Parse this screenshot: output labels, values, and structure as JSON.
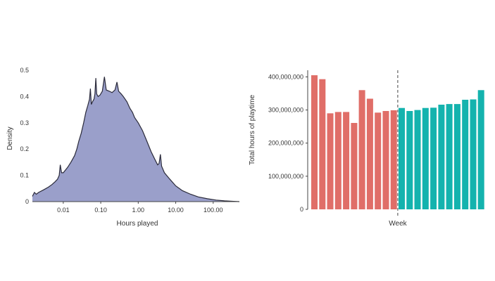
{
  "colors": {
    "density_fill": "#9a9fca",
    "density_line": "#2a2a3a",
    "pre_bars": "#e06e68",
    "post_bars": "#14b3ae",
    "axis": "#444444",
    "divider": "#444444"
  },
  "chart_data": [
    {
      "type": "area",
      "xlabel": "Hours played",
      "ylabel": "Density",
      "x_scale": "log",
      "xlim": [
        0.0015,
        500
      ],
      "ylim": [
        0,
        0.5
      ],
      "x_ticks": [
        {
          "value": 0.01,
          "label": "0.01"
        },
        {
          "value": 0.1,
          "label": "0.10"
        },
        {
          "value": 1,
          "label": "1.00"
        },
        {
          "value": 10,
          "label": "10.00"
        },
        {
          "value": 100,
          "label": "100.00"
        }
      ],
      "y_ticks": [
        {
          "value": 0,
          "label": "0"
        },
        {
          "value": 0.1,
          "label": "0.1"
        },
        {
          "value": 0.2,
          "label": "0.2"
        },
        {
          "value": 0.3,
          "label": "0.3"
        },
        {
          "value": 0.4,
          "label": "0.4"
        },
        {
          "value": 0.5,
          "label": "0.5"
        }
      ],
      "points": [
        [
          0.0015,
          0.02
        ],
        [
          0.0017,
          0.035
        ],
        [
          0.0019,
          0.028
        ],
        [
          0.0022,
          0.035
        ],
        [
          0.003,
          0.045
        ],
        [
          0.004,
          0.055
        ],
        [
          0.005,
          0.065
        ],
        [
          0.006,
          0.075
        ],
        [
          0.007,
          0.085
        ],
        [
          0.0078,
          0.1
        ],
        [
          0.0083,
          0.14
        ],
        [
          0.009,
          0.11
        ],
        [
          0.01,
          0.11
        ],
        [
          0.013,
          0.13
        ],
        [
          0.016,
          0.15
        ],
        [
          0.02,
          0.175
        ],
        [
          0.023,
          0.2
        ],
        [
          0.026,
          0.23
        ],
        [
          0.03,
          0.26
        ],
        [
          0.035,
          0.3
        ],
        [
          0.04,
          0.34
        ],
        [
          0.045,
          0.365
        ],
        [
          0.05,
          0.39
        ],
        [
          0.053,
          0.43
        ],
        [
          0.056,
          0.37
        ],
        [
          0.06,
          0.38
        ],
        [
          0.066,
          0.39
        ],
        [
          0.07,
          0.41
        ],
        [
          0.074,
          0.47
        ],
        [
          0.078,
          0.41
        ],
        [
          0.085,
          0.4
        ],
        [
          0.095,
          0.405
        ],
        [
          0.11,
          0.42
        ],
        [
          0.125,
          0.475
        ],
        [
          0.14,
          0.425
        ],
        [
          0.17,
          0.42
        ],
        [
          0.2,
          0.415
        ],
        [
          0.24,
          0.425
        ],
        [
          0.27,
          0.455
        ],
        [
          0.3,
          0.42
        ],
        [
          0.35,
          0.41
        ],
        [
          0.4,
          0.4
        ],
        [
          0.5,
          0.38
        ],
        [
          0.6,
          0.355
        ],
        [
          0.7,
          0.34
        ],
        [
          0.8,
          0.32
        ],
        [
          1.0,
          0.3
        ],
        [
          1.3,
          0.27
        ],
        [
          1.7,
          0.23
        ],
        [
          2.2,
          0.19
        ],
        [
          2.8,
          0.16
        ],
        [
          3.3,
          0.14
        ],
        [
          3.6,
          0.145
        ],
        [
          3.9,
          0.18
        ],
        [
          4.2,
          0.135
        ],
        [
          5,
          0.11
        ],
        [
          7,
          0.085
        ],
        [
          10,
          0.06
        ],
        [
          15,
          0.042
        ],
        [
          25,
          0.028
        ],
        [
          40,
          0.018
        ],
        [
          70,
          0.011
        ],
        [
          120,
          0.006
        ],
        [
          200,
          0.003
        ],
        [
          350,
          0.001
        ],
        [
          500,
          0.0
        ]
      ]
    },
    {
      "type": "bar",
      "xlabel": "Week",
      "ylabel": "Total hours of playtime",
      "ylim": [
        0,
        420000000
      ],
      "y_ticks": [
        {
          "value": 0,
          "label": "0"
        },
        {
          "value": 100000000,
          "label": "100,000,000"
        },
        {
          "value": 200000000,
          "label": "200,000,000"
        },
        {
          "value": 300000000,
          "label": "300,000,000"
        },
        {
          "value": 400000000,
          "label": "400,000,000"
        }
      ],
      "divider_after_index": 11,
      "values": [
        405000000,
        393000000,
        290000000,
        294000000,
        294000000,
        261000000,
        360000000,
        334000000,
        292000000,
        297000000,
        299000000,
        306000000,
        297000000,
        300000000,
        306000000,
        307000000,
        316000000,
        318000000,
        318000000,
        331000000,
        332000000,
        360000000
      ]
    }
  ]
}
